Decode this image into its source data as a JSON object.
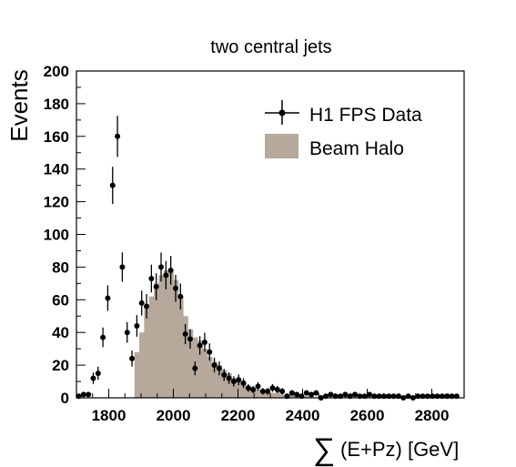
{
  "chart_data": {
    "type": "bar",
    "title": "two central jets",
    "ylabel": "Events",
    "xlabel": "(E+Pz) [GeV]",
    "xlabel_symbol": "∑",
    "xlim": [
      1700,
      2900
    ],
    "ylim": [
      0,
      200
    ],
    "xticks": [
      1800,
      2000,
      2200,
      2400,
      2600,
      2800
    ],
    "yticks": [
      0,
      20,
      40,
      60,
      80,
      100,
      120,
      140,
      160,
      180,
      200
    ],
    "grid": false,
    "legend_position": "top-right",
    "bin_width": 15,
    "series": [
      {
        "name": "H1 FPS Data",
        "kind": "points-with-errorbars",
        "color": "#000000",
        "x": [
          1707,
          1722,
          1737,
          1752,
          1767,
          1782,
          1797,
          1812,
          1827,
          1842,
          1857,
          1872,
          1887,
          1902,
          1917,
          1932,
          1947,
          1962,
          1977,
          1992,
          2007,
          2022,
          2037,
          2052,
          2067,
          2082,
          2097,
          2112,
          2127,
          2142,
          2157,
          2172,
          2187,
          2202,
          2217,
          2232,
          2247,
          2262,
          2277,
          2292,
          2307,
          2322,
          2337,
          2352,
          2367,
          2382,
          2397,
          2412,
          2427,
          2442,
          2457,
          2472,
          2487,
          2502,
          2517,
          2532,
          2547,
          2562,
          2577,
          2592,
          2607,
          2622,
          2637,
          2652,
          2667,
          2682,
          2697,
          2712,
          2727,
          2742,
          2757,
          2772,
          2787,
          2802,
          2817,
          2832,
          2847,
          2862,
          2877
        ],
        "y": [
          1,
          2,
          2,
          12,
          15,
          37,
          61,
          130,
          160,
          80,
          40,
          24,
          44,
          58,
          56,
          73,
          68,
          80,
          75,
          78,
          67,
          62,
          39,
          36,
          18,
          32,
          34,
          28,
          20,
          18,
          14,
          12,
          10,
          11,
          9,
          6,
          5,
          7,
          4,
          4,
          6,
          5,
          4,
          1,
          3,
          2,
          1,
          3,
          2,
          3,
          0,
          1,
          2,
          1,
          1,
          2,
          1,
          2,
          1,
          1,
          2,
          1,
          1,
          1,
          1,
          1,
          1,
          0,
          1,
          0,
          1,
          1,
          1,
          1,
          1,
          1,
          1,
          1,
          1
        ],
        "err": [
          1,
          1.5,
          1.5,
          3.5,
          4,
          6,
          7.8,
          11.4,
          12.6,
          9,
          6.3,
          4.9,
          6.6,
          7.6,
          7.5,
          8.5,
          8.2,
          8.9,
          8.7,
          8.8,
          8.2,
          7.9,
          6.2,
          6,
          4.2,
          5.7,
          5.8,
          5.3,
          4.5,
          4.2,
          3.7,
          3.5,
          3.2,
          3.3,
          3,
          2.4,
          2.2,
          2.6,
          2,
          2,
          2.4,
          2.2,
          2,
          1,
          1.7,
          1.4,
          1,
          1.7,
          1.4,
          1.7,
          0.5,
          1,
          1.4,
          1,
          1,
          1.4,
          1,
          1.4,
          1,
          1,
          1.4,
          1,
          1,
          1,
          1,
          1,
          1,
          0.5,
          1,
          0.5,
          1,
          1,
          1,
          1,
          1,
          1,
          1,
          1,
          1
        ]
      },
      {
        "name": "Beam Halo",
        "kind": "filled-histogram",
        "color": "#b6a99b",
        "x": [
          1887,
          1902,
          1917,
          1932,
          1947,
          1962,
          1977,
          1992,
          2007,
          2022,
          2037,
          2052,
          2067,
          2082,
          2097,
          2112,
          2127,
          2142,
          2157,
          2172,
          2187,
          2202,
          2217,
          2232,
          2247,
          2262,
          2277,
          2292,
          2307,
          2322,
          2337,
          2352,
          2367,
          2382,
          2397,
          2412,
          2427
        ],
        "y": [
          28,
          40,
          55,
          62,
          70,
          75,
          78,
          77,
          72,
          62,
          50,
          42,
          37,
          35,
          30,
          25,
          22,
          20,
          17,
          15,
          12,
          10,
          8,
          7,
          6,
          5,
          4,
          4,
          3,
          3,
          2,
          2,
          2,
          1,
          1,
          1,
          1
        ]
      }
    ]
  }
}
